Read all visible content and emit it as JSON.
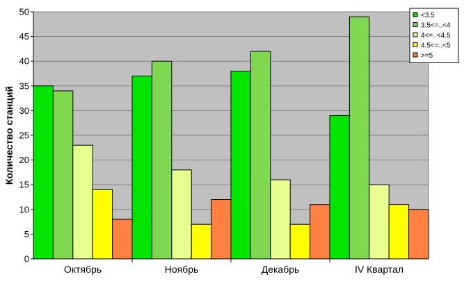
{
  "chart_data": {
    "type": "bar",
    "categories": [
      "Октябрь",
      "Ноябрь",
      "Декабрь",
      "IV Квартал"
    ],
    "series": [
      {
        "name": "<3.5",
        "values": [
          35,
          37,
          38,
          29
        ],
        "color": "#00e600"
      },
      {
        "name": "3.5<=..<4",
        "values": [
          34,
          40,
          42,
          49
        ],
        "color": "#80d850"
      },
      {
        "name": "4<=..<4.5",
        "values": [
          23,
          18,
          16,
          15
        ],
        "color": "#e8ff90"
      },
      {
        "name": "4.5<=..<5",
        "values": [
          14,
          7,
          7,
          11
        ],
        "color": "#ffff00"
      },
      {
        "name": ">=5",
        "values": [
          8,
          12,
          11,
          10
        ],
        "color": "#ff8040"
      }
    ],
    "title": "",
    "xlabel": "",
    "ylabel": "Количество станций",
    "ylim": [
      0,
      50
    ],
    "yticks": [
      0,
      5,
      10,
      15,
      20,
      25,
      30,
      35,
      40,
      45,
      50
    ],
    "grid": true,
    "plot_background": "#c0c0c0",
    "legend_position": "top-right"
  }
}
